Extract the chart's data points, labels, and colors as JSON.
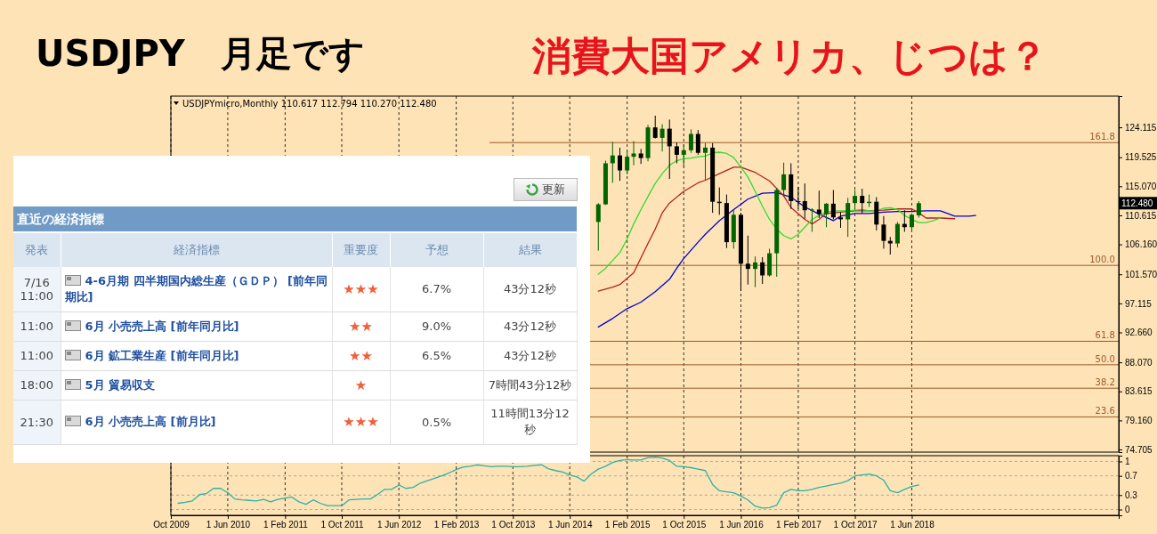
{
  "chart_data": [
    {
      "type": "candlestick",
      "title": "USDJPY　月足です",
      "subtitle": "消費大国アメリカ、じつは？",
      "x": [
        "2014-10",
        "2014-11",
        "2014-12",
        "2015-01",
        "2015-02",
        "2015-03",
        "2015-04",
        "2015-05",
        "2015-06",
        "2015-07",
        "2015-08",
        "2015-09",
        "2015-10",
        "2015-11",
        "2015-12",
        "2016-01",
        "2016-02",
        "2016-03",
        "2016-04",
        "2016-05",
        "2016-06",
        "2016-07",
        "2016-08",
        "2016-09",
        "2016-10",
        "2016-11",
        "2016-12",
        "2017-01",
        "2017-02",
        "2017-03",
        "2017-04",
        "2017-05",
        "2017-06",
        "2017-07",
        "2017-08",
        "2017-09",
        "2017-10",
        "2017-11",
        "2017-12",
        "2018-01",
        "2018-02",
        "2018-03",
        "2018-04",
        "2018-05",
        "2018-06",
        "2018-07"
      ],
      "ohlc": [
        [
          109.6,
          112.5,
          105.2,
          112.3
        ],
        [
          112.3,
          119.0,
          112.2,
          118.6
        ],
        [
          118.6,
          121.9,
          115.6,
          119.8
        ],
        [
          119.8,
          121.0,
          115.9,
          117.5
        ],
        [
          117.5,
          120.5,
          116.9,
          119.6
        ],
        [
          119.6,
          122.0,
          118.3,
          120.1
        ],
        [
          120.1,
          120.8,
          118.5,
          119.4
        ],
        [
          119.4,
          124.5,
          118.9,
          124.1
        ],
        [
          124.1,
          125.9,
          122.4,
          122.5
        ],
        [
          122.5,
          124.6,
          120.4,
          123.9
        ],
        [
          123.9,
          125.3,
          116.2,
          121.2
        ],
        [
          121.2,
          121.8,
          118.6,
          119.9
        ],
        [
          119.9,
          121.5,
          118.1,
          120.6
        ],
        [
          120.6,
          123.8,
          120.2,
          123.1
        ],
        [
          123.1,
          123.7,
          119.9,
          120.2
        ],
        [
          120.2,
          121.7,
          116.0,
          121.0
        ],
        [
          121.0,
          121.7,
          111.0,
          112.7
        ],
        [
          112.7,
          114.9,
          110.7,
          112.5
        ],
        [
          112.5,
          113.8,
          105.6,
          106.5
        ],
        [
          106.5,
          111.5,
          105.5,
          110.7
        ],
        [
          110.7,
          111.0,
          99.0,
          103.2
        ],
        [
          103.2,
          107.5,
          100.0,
          102.4
        ],
        [
          102.4,
          104.3,
          99.6,
          103.4
        ],
        [
          103.4,
          104.2,
          100.1,
          101.4
        ],
        [
          101.4,
          105.5,
          101.2,
          104.8
        ],
        [
          104.8,
          114.8,
          101.2,
          114.5
        ],
        [
          114.5,
          118.7,
          113.5,
          116.9
        ],
        [
          116.9,
          118.6,
          111.6,
          112.8
        ],
        [
          112.8,
          115.0,
          111.6,
          112.8
        ],
        [
          112.8,
          115.5,
          110.1,
          111.4
        ],
        [
          111.4,
          111.7,
          108.1,
          111.5
        ],
        [
          111.5,
          114.4,
          110.2,
          110.8
        ],
        [
          110.8,
          112.5,
          108.8,
          112.4
        ],
        [
          112.4,
          114.5,
          110.0,
          110.3
        ],
        [
          110.3,
          111.1,
          108.7,
          110.0
        ],
        [
          110.0,
          113.3,
          107.3,
          112.5
        ],
        [
          112.5,
          114.5,
          111.6,
          113.6
        ],
        [
          113.6,
          114.7,
          110.9,
          112.5
        ],
        [
          112.5,
          113.8,
          111.9,
          112.7
        ],
        [
          112.7,
          113.4,
          108.3,
          109.2
        ],
        [
          109.2,
          110.5,
          105.5,
          106.7
        ],
        [
          106.7,
          107.3,
          104.6,
          106.3
        ],
        [
          106.3,
          109.6,
          105.7,
          109.3
        ],
        [
          109.3,
          111.4,
          108.1,
          108.8
        ],
        [
          108.8,
          110.9,
          108.1,
          110.7
        ],
        [
          110.617,
          112.794,
          110.27,
          112.48
        ]
      ],
      "colors": [
        "#006400",
        "#006400",
        "#006400",
        "#000000",
        "#006400",
        "#006400",
        "#000000",
        "#006400",
        "#000000",
        "#006400",
        "#000000",
        "#000000",
        "#006400",
        "#006400",
        "#000000",
        "#006400",
        "#000000",
        "#000000",
        "#000000",
        "#006400",
        "#000000",
        "#000000",
        "#006400",
        "#000000",
        "#006400",
        "#006400",
        "#006400",
        "#000000",
        "#000000",
        "#000000",
        "#006400",
        "#000000",
        "#006400",
        "#000000",
        "#000000",
        "#006400",
        "#006400",
        "#000000",
        "#006400",
        "#000000",
        "#000000",
        "#000000",
        "#006400",
        "#000000",
        "#006400",
        "#006400"
      ],
      "series": [
        {
          "type": "line",
          "color": "#0000cd",
          "x": [
            "2014-10",
            "2014-12",
            "2015-02",
            "2015-04",
            "2015-06",
            "2015-08",
            "2015-09",
            "2015-10",
            "2015-12",
            "2016-01",
            "2016-03",
            "2016-05",
            "2016-07",
            "2016-09",
            "2016-11",
            "2017-01",
            "2017-03",
            "2017-05",
            "2017-07",
            "2017-08",
            "2017-10",
            "2017-12",
            "2018-02",
            "2018-04",
            "2018-06",
            "2018-08",
            "2018-10",
            "2018-11",
            "2018-12",
            "2019-02",
            "2019-03"
          ],
          "values": [
            93.5,
            94.8,
            96.3,
            97.3,
            98.9,
            100.8,
            102.5,
            104.0,
            106.5,
            107.7,
            109.8,
            111.5,
            113.1,
            114.0,
            114.1,
            113.4,
            111.9,
            110.8,
            109.8,
            110.5,
            110.9,
            110.9,
            111.1,
            111.2,
            111.2,
            111.3,
            111.3,
            110.9,
            110.5,
            110.5,
            110.6
          ]
        },
        {
          "type": "line",
          "color": "#b22222",
          "x": [
            "2014-10",
            "2014-12",
            "2015-01",
            "2015-03",
            "2015-05",
            "2015-06",
            "2015-07",
            "2015-08",
            "2015-10",
            "2015-12",
            "2016-01",
            "2016-03",
            "2016-05",
            "2016-06",
            "2016-08",
            "2016-10",
            "2016-12",
            "2017-01",
            "2017-03",
            "2017-04",
            "2017-05",
            "2017-06",
            "2017-08",
            "2017-10",
            "2017-12",
            "2018-02",
            "2018-04",
            "2018-06",
            "2018-07",
            "2018-08",
            "2018-10",
            "2018-12"
          ],
          "values": [
            99.0,
            99.6,
            100.0,
            101.8,
            106.3,
            108.5,
            111.0,
            112.5,
            114.3,
            115.6,
            116.0,
            117.0,
            118.0,
            118.0,
            117.2,
            115.9,
            113.6,
            111.8,
            110.0,
            109.3,
            110.0,
            110.9,
            111.1,
            111.3,
            111.3,
            111.4,
            111.6,
            111.6,
            111.0,
            110.2,
            110.2,
            110.1
          ]
        },
        {
          "type": "line",
          "color": "#32dc32",
          "x": [
            "2014-10",
            "2014-11",
            "2014-12",
            "2015-01",
            "2015-02",
            "2015-03",
            "2015-04",
            "2015-05",
            "2015-06",
            "2015-07",
            "2015-08",
            "2015-09",
            "2015-10",
            "2015-11",
            "2015-12",
            "2016-01",
            "2016-02",
            "2016-03",
            "2016-04",
            "2016-05",
            "2016-06",
            "2016-07",
            "2016-08",
            "2016-09",
            "2016-10",
            "2016-11",
            "2016-12",
            "2017-01",
            "2017-02",
            "2017-03",
            "2017-04",
            "2017-05",
            "2017-06",
            "2017-07",
            "2017-08",
            "2017-09",
            "2017-10",
            "2017-11",
            "2017-12",
            "2018-01",
            "2018-02",
            "2018-03",
            "2018-04",
            "2018-05",
            "2018-06",
            "2018-07",
            "2018-08",
            "2018-09",
            "2018-10"
          ],
          "values": [
            101.6,
            102.5,
            103.7,
            104.9,
            107.0,
            109.3,
            111.5,
            113.5,
            115.5,
            117.0,
            118.3,
            119.0,
            119.3,
            119.4,
            119.6,
            119.7,
            120.2,
            120.3,
            120.1,
            119.5,
            118.0,
            116.5,
            114.3,
            112.0,
            110.0,
            108.5,
            107.5,
            107.0,
            107.7,
            108.8,
            110.0,
            110.6,
            111.1,
            111.3,
            111.3,
            111.3,
            111.4,
            111.5,
            111.3,
            111.3,
            111.7,
            111.8,
            111.5,
            110.6,
            110.0,
            109.5,
            109.5,
            109.8,
            110.2
          ]
        }
      ],
      "xlim": [
        "2009-10-01",
        "2020-11-01"
      ],
      "xticks": [
        "2009-10",
        "2010-06",
        "2011-02",
        "2011-10",
        "2012-06",
        "2013-02",
        "2013-10",
        "2014-06",
        "2015-02",
        "2015-10",
        "2016-06",
        "2017-02",
        "2017-10",
        "2018-06"
      ],
      "ylim": [
        74.3,
        128.9
      ],
      "yticks": [
        74.705,
        {
          "value": 79.16,
          "label": "79.160"
        },
        83.615,
        {
          "value": 88.07,
          "label": "88.070"
        },
        {
          "value": 92.66,
          "label": "92.660"
        },
        97.115,
        {
          "value": 101.57,
          "label": "101.570"
        },
        {
          "value": 106.16,
          "label": "106.160"
        },
        110.615,
        {
          "value": 115.07,
          "label": "115.070"
        },
        119.525,
        124.115
      ],
      "tick_labels": "y",
      "grid": "x",
      "ref_lines": [
        {
          "axis": "y",
          "value": 121.77,
          "color": "#9c5a2c"
        },
        {
          "axis": "y",
          "value": 102.94,
          "color": "#9c5a2c"
        },
        {
          "axis": "y",
          "value": 91.3,
          "color": "#9c5a2c"
        },
        {
          "axis": "y",
          "value": 87.7,
          "color": "#9c5a2c"
        },
        {
          "axis": "y",
          "value": 84.1,
          "color": "#9c5a2c"
        },
        {
          "axis": "y",
          "value": 79.7,
          "color": "#9c5a2c"
        }
      ],
      "annotations": [
        "USDJPYmicro,Monthly 110.617 112.794 110.270 112.480",
        "112.480",
        {
          "text": "161.8",
          "x": "2020-10",
          "y": 121.77
        },
        {
          "text": "100.0",
          "x": "2020-10",
          "y": 102.94
        },
        {
          "text": "61.8",
          "x": "2020-10",
          "y": 91.3
        },
        {
          "text": "50.0",
          "x": "2020-10",
          "y": 87.7
        },
        {
          "text": "38.2",
          "x": "2020-10",
          "y": 84.1
        },
        {
          "text": "23.6",
          "x": "2020-10",
          "y": 79.7
        }
      ]
    },
    {
      "type": "line",
      "series": [
        {
          "color": "#2bb3a8",
          "x": [
            "2009-11",
            "2009-12",
            "2010-01",
            "2010-02",
            "2010-03",
            "2010-04",
            "2010-05",
            "2010-06",
            "2010-07",
            "2010-08",
            "2010-09",
            "2010-10",
            "2010-11",
            "2010-12",
            "2011-01",
            "2011-02",
            "2011-03",
            "2011-04",
            "2011-05",
            "2011-06",
            "2011-07",
            "2011-08",
            "2011-09",
            "2011-10",
            "2011-11",
            "2011-12",
            "2012-01",
            "2012-02",
            "2012-03",
            "2012-04",
            "2012-05",
            "2012-06",
            "2012-07",
            "2012-08",
            "2012-09",
            "2012-10",
            "2012-11",
            "2012-12",
            "2013-01",
            "2013-02",
            "2013-03",
            "2013-04",
            "2013-05",
            "2013-06",
            "2013-07",
            "2013-08",
            "2013-09",
            "2013-10",
            "2013-11",
            "2013-12",
            "2014-01",
            "2014-02",
            "2014-03",
            "2014-04",
            "2014-05",
            "2014-06",
            "2014-07",
            "2014-08",
            "2014-09",
            "2014-10",
            "2014-11",
            "2014-12",
            "2015-01",
            "2015-02",
            "2015-03",
            "2015-04",
            "2015-05",
            "2015-06",
            "2015-07",
            "2015-08",
            "2015-09",
            "2015-10",
            "2015-11",
            "2015-12",
            "2016-01",
            "2016-02",
            "2016-03",
            "2016-04",
            "2016-05",
            "2016-06",
            "2016-07",
            "2016-08",
            "2016-09",
            "2016-10",
            "2016-11",
            "2016-12",
            "2017-01",
            "2017-02",
            "2017-03",
            "2017-04",
            "2017-05",
            "2017-06",
            "2017-07",
            "2017-08",
            "2017-09",
            "2017-10",
            "2017-11",
            "2017-12",
            "2018-01",
            "2018-02",
            "2018-03",
            "2018-04",
            "2018-05",
            "2018-06",
            "2018-07"
          ],
          "values": [
            0.13,
            0.15,
            0.18,
            0.31,
            0.33,
            0.44,
            0.44,
            0.35,
            0.22,
            0.2,
            0.19,
            0.18,
            0.21,
            0.16,
            0.21,
            0.24,
            0.26,
            0.16,
            0.11,
            0.2,
            0.13,
            0.08,
            0.08,
            0.08,
            0.2,
            0.21,
            0.22,
            0.22,
            0.31,
            0.42,
            0.42,
            0.51,
            0.44,
            0.46,
            0.55,
            0.6,
            0.65,
            0.7,
            0.76,
            0.83,
            0.88,
            0.9,
            0.93,
            0.91,
            0.89,
            0.9,
            0.9,
            0.89,
            0.89,
            0.9,
            0.92,
            0.93,
            0.85,
            0.81,
            0.78,
            0.72,
            0.68,
            0.59,
            0.74,
            0.84,
            0.9,
            0.98,
            1.02,
            1.04,
            1.03,
            1.03,
            1.08,
            1.09,
            1.07,
            1.02,
            0.9,
            0.89,
            0.87,
            0.84,
            0.81,
            0.52,
            0.39,
            0.37,
            0.35,
            0.28,
            0.2,
            0.07,
            0.03,
            0.04,
            0.09,
            0.35,
            0.42,
            0.39,
            0.39,
            0.42,
            0.46,
            0.49,
            0.52,
            0.55,
            0.6,
            0.7,
            0.72,
            0.74,
            0.7,
            0.61,
            0.39,
            0.35,
            0.42,
            0.48,
            0.51
          ]
        }
      ],
      "xlim": [
        "2009-10-01",
        "2020-11-01"
      ],
      "xticks": [
        {
          "value": "2009-10",
          "label": "Oct 2009"
        },
        {
          "value": "2010-06",
          "label": "1 Jun 2010"
        },
        {
          "value": "2011-02",
          "label": "1 Feb 2011"
        },
        {
          "value": "2011-10",
          "label": "1 Oct 2011"
        },
        {
          "value": "2012-06",
          "label": "1 Jun 2012"
        },
        {
          "value": "2013-02",
          "label": "1 Feb 2013"
        },
        {
          "value": "2013-10",
          "label": "1 Oct 2013"
        },
        {
          "value": "2014-06",
          "label": "1 Jun 2014"
        },
        {
          "value": "2015-02",
          "label": "1 Feb 2015"
        },
        {
          "value": "2015-10",
          "label": "1 Oct 2015"
        },
        {
          "value": "2016-06",
          "label": "1 Jun 2016"
        },
        {
          "value": "2017-02",
          "label": "1 Feb 2017"
        },
        {
          "value": "2017-10",
          "label": "1 Oct 2017"
        },
        {
          "value": "2018-06",
          "label": "1 Jun 2018"
        }
      ],
      "ylim": [
        -0.12,
        1.12
      ],
      "yticks": [
        0,
        0.3,
        0.7,
        1
      ],
      "grid": true
    },
    {
      "type": "other",
      "title": "直近の経済指標",
      "categories": [
        "発表",
        "経済指標",
        "重要度",
        "予想",
        "結果"
      ],
      "annotations": [
        "更新",
        "7/16 11:00",
        "4-6月期 四半期国内総生産（ＧＤＰ） [前年同期比]",
        "★★★",
        "6.7%",
        "43分12秒",
        "11:00",
        "6月 小売売上高 [前年同月比]",
        "★★",
        "9.0%",
        "43分12秒",
        "11:00",
        "6月 鉱工業生産 [前年同月比]",
        "★★",
        "6.5%",
        "43分12秒",
        "18:00",
        "5月 貿易収支",
        "★",
        null,
        "7時間43分12秒",
        "21:30",
        "6月 小売売上高 [前月比]",
        "★★★",
        "0.5%",
        "11時間13分12秒"
      ]
    }
  ]
}
